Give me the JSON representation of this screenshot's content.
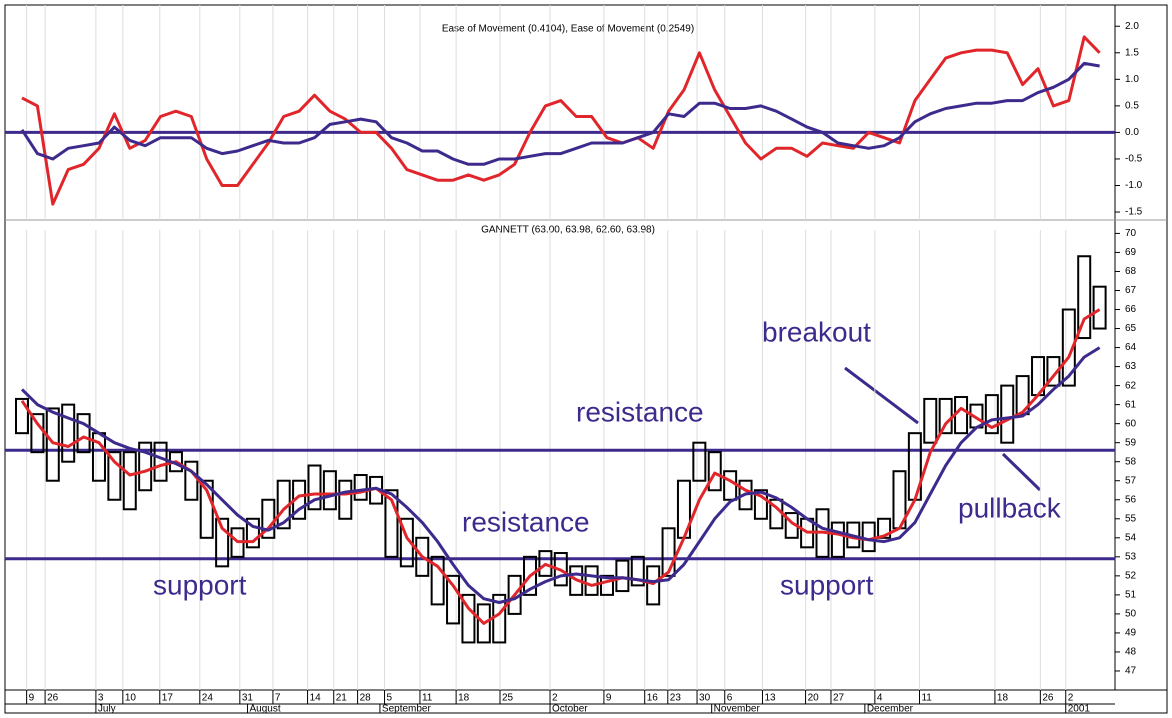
{
  "chart_data": [
    {
      "type": "line",
      "title": "Ease of Movement (0.4104), Ease of Movement (0.2549)",
      "x": [
        0,
        2,
        4,
        6,
        8,
        10,
        12,
        14,
        16,
        18,
        20,
        22,
        24,
        26,
        28,
        30,
        32,
        34,
        36,
        38,
        40,
        42,
        44,
        46,
        48,
        50,
        52,
        54,
        56,
        58,
        60,
        62,
        64,
        66,
        68,
        70,
        72,
        74,
        76,
        78,
        80,
        82,
        84,
        86,
        88,
        90,
        92,
        94,
        96,
        98,
        100,
        102,
        104,
        106,
        108,
        110,
        112,
        114,
        116,
        118,
        120,
        122,
        124,
        126,
        128,
        130,
        132,
        134,
        136,
        138,
        140
      ],
      "series": [
        {
          "color": "#e0262b",
          "values": [
            0.65,
            0.5,
            -1.35,
            -0.7,
            -0.6,
            -0.3,
            0.35,
            -0.3,
            -0.15,
            0.3,
            0.4,
            0.3,
            -0.5,
            -1.0,
            -1.0,
            -0.6,
            -0.2,
            0.3,
            0.4,
            0.7,
            0.4,
            0.25,
            0.0,
            0.0,
            -0.3,
            -0.7,
            -0.8,
            -0.9,
            -0.9,
            -0.8,
            -0.9,
            -0.8,
            -0.6,
            0.0,
            0.5,
            0.6,
            0.3,
            0.3,
            -0.1,
            -0.2,
            -0.1,
            -0.3,
            0.4,
            0.8,
            1.5,
            0.8,
            0.3,
            -0.2,
            -0.5,
            -0.3,
            -0.3,
            -0.45,
            -0.2,
            -0.25,
            -0.3,
            0.0,
            -0.1,
            -0.2,
            0.6,
            1.0,
            1.4,
            1.5,
            1.55,
            1.55,
            1.5,
            0.9,
            1.2,
            0.5,
            0.6,
            1.8,
            1.5
          ]
        },
        {
          "color": "#3d2a8c",
          "values": [
            0.05,
            -0.4,
            -0.5,
            -0.3,
            -0.25,
            -0.2,
            0.1,
            -0.15,
            -0.25,
            -0.1,
            -0.1,
            -0.1,
            -0.3,
            -0.4,
            -0.35,
            -0.25,
            -0.15,
            -0.2,
            -0.2,
            -0.1,
            0.15,
            0.2,
            0.25,
            0.2,
            -0.1,
            -0.2,
            -0.35,
            -0.35,
            -0.5,
            -0.6,
            -0.6,
            -0.5,
            -0.5,
            -0.45,
            -0.4,
            -0.4,
            -0.3,
            -0.2,
            -0.2,
            -0.2,
            -0.1,
            0.0,
            0.35,
            0.3,
            0.55,
            0.55,
            0.45,
            0.45,
            0.5,
            0.4,
            0.25,
            0.1,
            0.0,
            -0.2,
            -0.25,
            -0.3,
            -0.25,
            -0.1,
            0.2,
            0.35,
            0.45,
            0.5,
            0.55,
            0.55,
            0.6,
            0.6,
            0.75,
            0.85,
            1.0,
            1.3,
            1.25
          ]
        }
      ],
      "reference_lines": [
        {
          "value": 0,
          "color": "#3d2a8c"
        }
      ],
      "xlim": [
        0,
        142
      ],
      "ylim": [
        -1.65,
        2.4
      ],
      "yticks": [
        -1.5,
        {
          "value": -1,
          "label": "-1.0"
        },
        -0.5,
        {
          "value": 0,
          "label": "0.0"
        },
        0.5,
        {
          "value": 1,
          "label": "1.0"
        },
        1.5,
        {
          "value": 2,
          "label": "2.0"
        }
      ]
    },
    {
      "type": "range_bar",
      "title": "GANNETT (63.00, 63.98, 62.60, 63.98)",
      "x": [
        0,
        2,
        4,
        6,
        8,
        10,
        12,
        14,
        16,
        18,
        20,
        22,
        24,
        26,
        28,
        30,
        32,
        34,
        36,
        38,
        40,
        42,
        44,
        46,
        48,
        50,
        52,
        54,
        56,
        58,
        60,
        62,
        64,
        66,
        68,
        70,
        72,
        74,
        76,
        78,
        80,
        82,
        84,
        86,
        88,
        90,
        92,
        94,
        96,
        98,
        100,
        102,
        104,
        106,
        108,
        110,
        112,
        114,
        116,
        118,
        120,
        122,
        124,
        126,
        128,
        130,
        132,
        134,
        136,
        138,
        140
      ],
      "low": [
        59.5,
        58.5,
        57,
        58,
        58.5,
        57,
        56,
        55.5,
        56.5,
        57,
        57.5,
        56,
        54,
        52.5,
        53,
        53.5,
        54,
        54.5,
        55,
        55.5,
        55.5,
        55,
        56,
        55.8,
        53,
        52.5,
        52,
        50.5,
        49.5,
        48.5,
        48.5,
        48.5,
        50,
        51,
        52,
        51.5,
        51,
        51,
        51,
        51.2,
        51.5,
        50.5,
        52,
        54,
        57,
        56.5,
        56,
        55.5,
        55,
        54.5,
        54,
        53.5,
        53,
        53,
        53.5,
        53.3,
        54,
        54.5,
        56,
        59,
        59.5,
        59.5,
        59.8,
        59.5,
        59,
        60.5,
        61.5,
        62,
        62,
        64.5,
        65
      ],
      "high": [
        61.3,
        60.5,
        60.8,
        61,
        60.5,
        59.5,
        58.5,
        58.5,
        59,
        59,
        58.5,
        58,
        57,
        55,
        54.5,
        55,
        56,
        57,
        57,
        57.8,
        57.5,
        57,
        57.3,
        57.2,
        56.5,
        55,
        54,
        53,
        52,
        51,
        50.5,
        51,
        52,
        53,
        53.3,
        53.2,
        52.5,
        52.5,
        52,
        52.8,
        53,
        52.5,
        54.5,
        57,
        59,
        58.5,
        57.5,
        57,
        56.5,
        56,
        55.3,
        55,
        55.5,
        54.8,
        54.8,
        54.8,
        55,
        57.5,
        59.5,
        61.3,
        61.3,
        61.4,
        61,
        61.5,
        62,
        62.5,
        63.5,
        63.5,
        66,
        68.8,
        67.2
      ],
      "series": [
        {
          "color": "#e0262b",
          "values": [
            61.2,
            60,
            59,
            58.8,
            59.3,
            59,
            58,
            57.3,
            57.5,
            57.8,
            58,
            57.5,
            56.5,
            54.5,
            53.8,
            53.8,
            54.5,
            55.5,
            56.2,
            56.3,
            56.3,
            56.3,
            56.4,
            56.6,
            56,
            54,
            53,
            52.5,
            51.5,
            50.3,
            49.5,
            50,
            51,
            52,
            52.6,
            52.3,
            51.8,
            51.5,
            51.7,
            51.9,
            51.8,
            51.6,
            52.2,
            54,
            56,
            57.4,
            57,
            56.5,
            56.2,
            55.6,
            54.8,
            54.3,
            54.3,
            54.2,
            54,
            53.9,
            54.1,
            54.5,
            56,
            58.5,
            60,
            60.8,
            60.3,
            59.8,
            60.2,
            60.6,
            61.5,
            62.5,
            63.5,
            65.5,
            66
          ]
        },
        {
          "color": "#3d2a8c",
          "values": [
            61.8,
            61,
            60.6,
            60.3,
            60,
            59.5,
            59,
            58.7,
            58.5,
            58.2,
            57.9,
            57.5,
            56.8,
            56,
            55.2,
            54.6,
            54.4,
            54.8,
            55.5,
            56,
            56.2,
            56.4,
            56.5,
            56.6,
            56.3,
            55.6,
            54.8,
            53.8,
            52.6,
            51.5,
            50.8,
            50.6,
            50.8,
            51.3,
            51.7,
            52,
            52.1,
            52,
            51.9,
            51.9,
            51.8,
            51.7,
            51.8,
            52.6,
            53.8,
            55,
            55.9,
            56.3,
            56.4,
            56.1,
            55.6,
            55,
            54.5,
            54.3,
            54.1,
            53.9,
            53.8,
            54,
            54.8,
            56.3,
            57.8,
            59,
            59.8,
            60.2,
            60.3,
            60.4,
            61,
            61.8,
            62.5,
            63.5,
            64
          ]
        }
      ],
      "bar_color": "#000000",
      "reference_lines": [
        {
          "value": 58.6,
          "color": "#3d2a8c"
        },
        {
          "value": 52.9,
          "color": "#3d2a8c"
        }
      ],
      "annotations": [
        "breakout",
        "resistance",
        "resistance",
        "support",
        "support",
        "pullback"
      ],
      "xlim": [
        0,
        142
      ],
      "ylim": [
        46,
        70.6
      ],
      "yticks": [
        47,
        48,
        49,
        50,
        51,
        52,
        53,
        54,
        55,
        56,
        57,
        58,
        59,
        60,
        61,
        62,
        63,
        64,
        65,
        66,
        67,
        68,
        69,
        70
      ],
      "xticks": [
        {
          "value": 0.6,
          "label": "9"
        },
        {
          "value": 3,
          "label": "26"
        },
        {
          "value": 9.6,
          "label": "3"
        },
        {
          "value": 13.1,
          "label": "10"
        },
        {
          "value": 17.9,
          "label": "17"
        },
        {
          "value": 23.1,
          "label": "24"
        },
        {
          "value": 28.3,
          "label": "31"
        },
        {
          "value": 32.6,
          "label": "7"
        },
        {
          "value": 37.1,
          "label": "14"
        },
        {
          "value": 40.5,
          "label": "21"
        },
        {
          "value": 43.6,
          "label": "28"
        },
        {
          "value": 47.1,
          "label": "5"
        },
        {
          "value": 51.7,
          "label": "11"
        },
        {
          "value": 56.4,
          "label": "18"
        },
        {
          "value": 62.1,
          "label": "25"
        },
        {
          "value": 68.6,
          "label": "2"
        },
        {
          "value": 75.6,
          "label": "9"
        },
        {
          "value": 80.9,
          "label": "16"
        },
        {
          "value": 83.9,
          "label": "23"
        },
        {
          "value": 87.7,
          "label": "30"
        },
        {
          "value": 91.3,
          "label": "6"
        },
        {
          "value": 96.2,
          "label": "13"
        },
        {
          "value": 101.8,
          "label": "20"
        },
        {
          "value": 105.1,
          "label": "27"
        },
        {
          "value": 110.8,
          "label": "4"
        },
        {
          "value": 116.6,
          "label": "11"
        },
        {
          "value": 126.4,
          "label": "18"
        },
        {
          "value": 132.3,
          "label": "26"
        },
        {
          "value": 135.6,
          "label": "2"
        }
      ],
      "months": [
        {
          "value": 9.6,
          "label": "July"
        },
        {
          "value": 29.3,
          "label": "August"
        },
        {
          "value": 46.5,
          "label": "September"
        },
        {
          "value": 68.6,
          "label": "October"
        },
        {
          "value": 89.6,
          "label": "November"
        },
        {
          "value": 109.5,
          "label": "December"
        },
        {
          "value": 135.6,
          "label": "2001"
        }
      ]
    }
  ]
}
